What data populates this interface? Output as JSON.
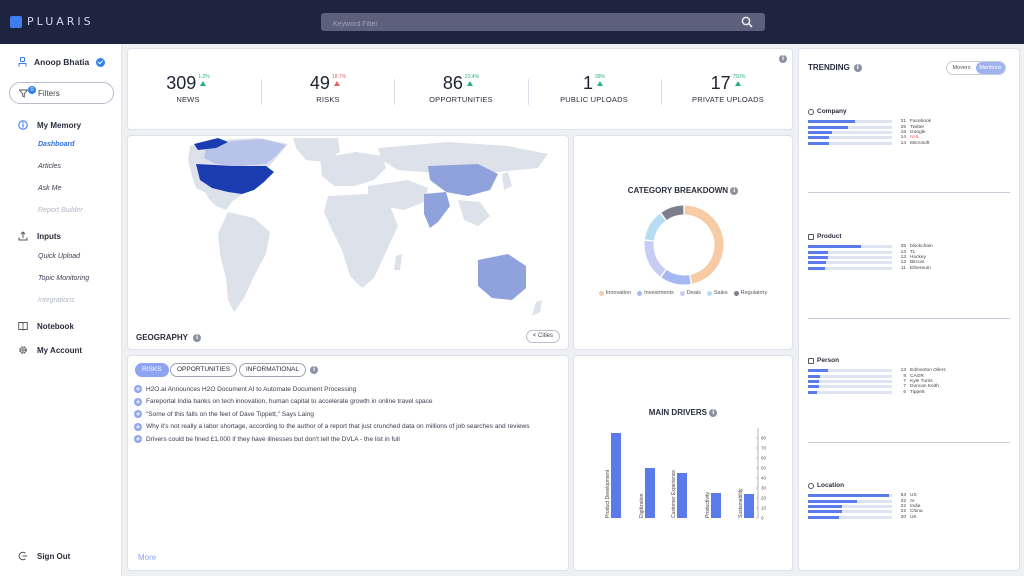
{
  "app": {
    "logo": "PLUARIS"
  },
  "search": {
    "placeholder": "Keyword Filter"
  },
  "sidebar": {
    "user_name": "Anoop Bhatia",
    "filters_label": "Filters",
    "filters_count": "0",
    "my_memory": "My Memory",
    "memory_items": [
      "Dashboard",
      "Articles",
      "Ask Me",
      "Report Builder"
    ],
    "inputs": "Inputs",
    "input_items": [
      "Quick Upload",
      "Topic Monitoring",
      "Integrations"
    ],
    "notebook": "Notebook",
    "my_account": "My Account",
    "sign_out": "Sign Out"
  },
  "stats": [
    {
      "value": "309",
      "pct": "1.2%",
      "dir": "up",
      "label": "NEWS"
    },
    {
      "value": "49",
      "pct": "18.7%",
      "dir": "down",
      "label": "RISKS"
    },
    {
      "value": "86",
      "pct": "23.4%",
      "dir": "up",
      "label": "OPPORTUNITIES"
    },
    {
      "value": "1",
      "pct": "99%",
      "dir": "up",
      "label": "PUBLIC UPLOADS"
    },
    {
      "value": "17",
      "pct": "750%",
      "dir": "up",
      "label": "PRIVATE UPLOADS"
    }
  ],
  "geography": {
    "title": "GEOGRAPHY",
    "cities_button": "< Cities"
  },
  "category": {
    "title": "CATEGORY BREAKDOWN",
    "legend": [
      {
        "label": "Innovation",
        "color": "#f6cba6"
      },
      {
        "label": "Investments",
        "color": "#a6b8f4"
      },
      {
        "label": "Deals",
        "color": "#c9cdf4"
      },
      {
        "label": "Sales",
        "color": "#b8dcf4"
      },
      {
        "label": "Regulatory",
        "color": "#7b7f8c"
      }
    ]
  },
  "news": {
    "tabs": [
      "RISKS",
      "OPPORTUNITIES",
      "INFORMATIONAL"
    ],
    "items": [
      "H2O.ai Announces H2O Document AI to Automate Document Processing",
      "Fareportal India banks on tech innovation, human capital to accelerate growth in online travel space",
      "\"Some of this falls on the feet of Dave Tippett,\" Says Laing",
      "Why it's not really a labor shortage, according to the author of a report that just crunched data on millions of job searches and reviews",
      "Drivers could be fined £1,000 if they have illnesses but don't tell the DVLA - the list in full"
    ],
    "more": "More"
  },
  "drivers": {
    "title": "MAIN DRIVERS"
  },
  "trending": {
    "title": "TRENDING",
    "toggle": [
      "Movers",
      "Mentions"
    ],
    "sections": [
      {
        "name": "Company",
        "items": [
          {
            "value": 31,
            "label": "Facebook"
          },
          {
            "value": 26,
            "label": "Twitter"
          },
          {
            "value": 16,
            "label": "Google"
          },
          {
            "value": 14,
            "label": "NHL"
          },
          {
            "value": 14,
            "label": "Microsoft"
          }
        ]
      },
      {
        "name": "Product",
        "items": [
          {
            "value": 35,
            "label": "blockchain"
          },
          {
            "value": 13,
            "label": "TL"
          },
          {
            "value": 13,
            "label": "Hockey"
          },
          {
            "value": 12,
            "label": "Bitcoin"
          },
          {
            "value": 11,
            "label": "Ethereum"
          }
        ]
      },
      {
        "name": "Person",
        "items": [
          {
            "value": 13,
            "label": "Edmonton Oilers"
          },
          {
            "value": 8,
            "label": "CAGR"
          },
          {
            "value": 7,
            "label": "Kyle Turris"
          },
          {
            "value": 7,
            "label": "Duncan Keith"
          },
          {
            "value": 6,
            "label": "Tippett"
          }
        ]
      },
      {
        "name": "Location",
        "items": [
          {
            "value": 53,
            "label": "US"
          },
          {
            "value": 32,
            "label": "AI"
          },
          {
            "value": 22,
            "label": "India"
          },
          {
            "value": 22,
            "label": "China"
          },
          {
            "value": 20,
            "label": "UK"
          }
        ]
      }
    ]
  },
  "chart_data": [
    {
      "type": "pie",
      "title": "CATEGORY BREAKDOWN",
      "categories": [
        "Innovation",
        "Investments",
        "Deals",
        "Sales",
        "Regulatory"
      ],
      "values": [
        47,
        13,
        17,
        13,
        10
      ]
    },
    {
      "type": "bar",
      "title": "MAIN DRIVERS",
      "categories": [
        "Product Development",
        "Digitization",
        "Customer Experience",
        "Productivity",
        "Sustainability"
      ],
      "values": [
        85,
        50,
        45,
        25,
        24
      ],
      "ylim": [
        0,
        90
      ],
      "yticks": [
        0,
        10,
        20,
        30,
        40,
        50,
        60,
        70,
        80
      ]
    }
  ]
}
